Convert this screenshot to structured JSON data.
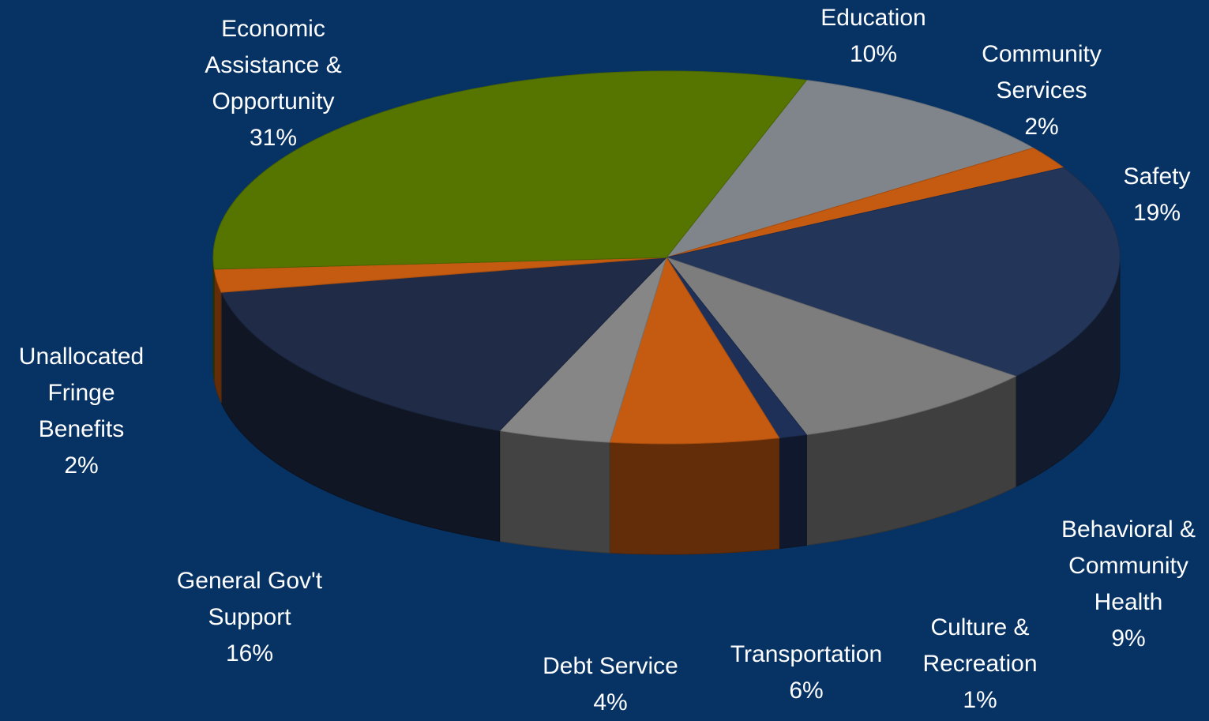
{
  "chart_data": {
    "type": "pie",
    "style": "3d-exploded-tilted",
    "slices": [
      {
        "label_lines": [
          "Education"
        ],
        "pct_label": "10%",
        "value": 10,
        "color": "#7f858b"
      },
      {
        "label_lines": [
          "Community",
          "Services"
        ],
        "pct_label": "2%",
        "value": 2,
        "color": "#c55a11"
      },
      {
        "label_lines": [
          "Safety"
        ],
        "pct_label": "19%",
        "value": 19,
        "color": "#233559"
      },
      {
        "label_lines": [
          "Behavioral &",
          "Community",
          "Health"
        ],
        "pct_label": "9%",
        "value": 9,
        "color": "#7d7d7d"
      },
      {
        "label_lines": [
          "Culture &",
          "Recreation"
        ],
        "pct_label": "1%",
        "value": 1,
        "color": "#1e3057"
      },
      {
        "label_lines": [
          "Transportation"
        ],
        "pct_label": "6%",
        "value": 6,
        "color": "#c55a11"
      },
      {
        "label_lines": [
          "Debt Service"
        ],
        "pct_label": "4%",
        "value": 4,
        "color": "#868686"
      },
      {
        "label_lines": [
          "General Gov't",
          "Support"
        ],
        "pct_label": "16%",
        "value": 16,
        "color": "#1f2b47"
      },
      {
        "label_lines": [
          "Unallocated",
          "Fringe",
          "Benefits"
        ],
        "pct_label": "2%",
        "value": 2,
        "color": "#c55a11"
      },
      {
        "label_lines": [
          "Economic",
          "Assistance &",
          "Opportunity"
        ],
        "pct_label": "31%",
        "value": 31,
        "color": "#567500"
      }
    ]
  }
}
